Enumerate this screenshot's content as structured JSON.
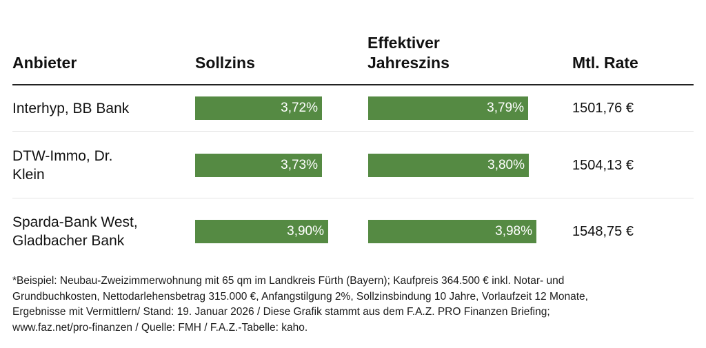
{
  "table": {
    "headers": {
      "anbieter": "Anbieter",
      "sollzins": "Sollzins",
      "effektiv_line1": "Effektiver",
      "effektiv_line2": "Jahreszins",
      "rate": "Mtl. Rate"
    },
    "rows": [
      {
        "anbieter": "Interhyp, BB Bank",
        "anbieter_lines": [
          "Interhyp, BB Bank"
        ],
        "sollzins": 3.72,
        "sollzins_label": "3,72%",
        "effektiv": 3.79,
        "effektiv_label": "3,79%",
        "rate": "1501,76 €"
      },
      {
        "anbieter": "DTW-Immo, Dr. Klein",
        "anbieter_lines": [
          "DTW-Immo, Dr.",
          "Klein"
        ],
        "sollzins": 3.73,
        "sollzins_label": "3,73%",
        "effektiv": 3.8,
        "effektiv_label": "3,80%",
        "rate": "1504,13 €"
      },
      {
        "anbieter": "Sparda-Bank West, Gladbacher Bank",
        "anbieter_lines": [
          "Sparda-Bank West,",
          "Gladbacher Bank"
        ],
        "sollzins": 3.9,
        "sollzins_label": "3,90%",
        "effektiv": 3.98,
        "effektiv_label": "3,98%",
        "rate": "1548,75 €"
      }
    ]
  },
  "chart_data": {
    "type": "table",
    "title": "",
    "columns": [
      "Anbieter",
      "Sollzins",
      "Effektiver Jahreszins",
      "Mtl. Rate"
    ],
    "categories": [
      "Interhyp, BB Bank",
      "DTW-Immo, Dr. Klein",
      "Sparda-Bank West, Gladbacher Bank"
    ],
    "series": [
      {
        "name": "Sollzins",
        "unit": "%",
        "values": [
          3.72,
          3.73,
          3.9
        ]
      },
      {
        "name": "Effektiver Jahreszins",
        "unit": "%",
        "values": [
          3.79,
          3.8,
          3.98
        ]
      },
      {
        "name": "Mtl. Rate",
        "unit": "€",
        "values": [
          1501.76,
          1504.13,
          1548.75
        ]
      }
    ],
    "bar_color": "#558a43",
    "bar_scale_max": 4.6
  },
  "footnote": {
    "lines": [
      "*Beispiel: Neubau-Zweizimmerwohnung mit 65 qm im Landkreis Fürth (Bayern); Kaufpreis 364.500 € inkl. Notar- und",
      "Grundbuchkosten, Nettodarlehensbetrag 315.000 €, Anfangstilgung 2%, Sollzinsbindung 10 Jahre, Vorlaufzeit 12 Monate,",
      "Ergebnisse mit Vermittlern/ Stand: 19. Januar 2026 / Diese Grafik stammt aus dem F.A.Z. PRO Finanzen Briefing;",
      "www.faz.net/pro-finanzen  / Quelle: FMH  / F.A.Z.-Tabelle: kaho."
    ]
  }
}
